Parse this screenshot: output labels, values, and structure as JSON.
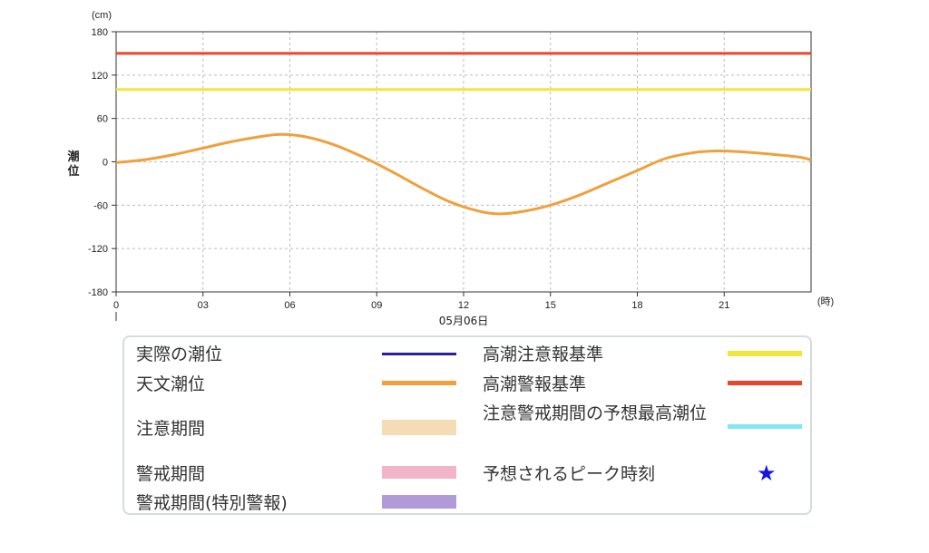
{
  "chart_data": {
    "type": "line",
    "y_unit": "(cm)",
    "x_unit": "(時)",
    "ylabel": "潮\n位",
    "ylim": [
      -180,
      180
    ],
    "yticks": [
      180,
      120,
      60,
      0,
      -60,
      -120,
      -180
    ],
    "xlim": [
      0,
      24
    ],
    "xticks": [
      {
        "value": 0,
        "label": "0"
      },
      {
        "value": 3,
        "label": "03"
      },
      {
        "value": 6,
        "label": "06"
      },
      {
        "value": 9,
        "label": "09"
      },
      {
        "value": 12,
        "label": "12"
      },
      {
        "value": 15,
        "label": "15"
      },
      {
        "value": 18,
        "label": "18"
      },
      {
        "value": 21,
        "label": "21"
      }
    ],
    "date_label": "05月06日",
    "grid": true,
    "reference_lines": [
      {
        "name": "高潮警報基準",
        "value": 150,
        "color": "#e8472c"
      },
      {
        "name": "高潮注意報基準",
        "value": 100,
        "color": "#f0e63c"
      }
    ],
    "series": [
      {
        "name": "天文潮位",
        "color": "#f0a03c",
        "x": [
          0,
          1,
          2,
          3,
          4,
          5,
          5.7,
          6.5,
          7.5,
          8.5,
          9.5,
          10.5,
          11.5,
          12.5,
          13.2,
          14,
          15,
          16,
          17,
          18,
          19,
          20,
          20.8,
          21.5,
          22.5,
          23.5,
          24
        ],
        "y": [
          -1,
          3,
          10,
          19,
          28,
          35,
          38,
          35,
          24,
          7,
          -13,
          -35,
          -55,
          -68,
          -72,
          -69,
          -60,
          -46,
          -29,
          -12,
          5,
          13,
          15,
          14,
          11,
          7,
          3
        ]
      }
    ]
  },
  "legend": {
    "items": [
      {
        "label": "実際の潮位",
        "color": "#2a1f9a",
        "kind": "line"
      },
      {
        "label": "天文潮位",
        "color": "#f0a03c",
        "kind": "line"
      },
      {
        "label": "注意期間",
        "color": "#f5dcb4",
        "kind": "block"
      },
      {
        "label": "警戒期間",
        "color": "#f2b4c8",
        "kind": "block"
      },
      {
        "label": "警戒期間(特別警報)",
        "color": "#b09ad8",
        "kind": "block"
      },
      {
        "label": "高潮注意報基準",
        "color": "#f0e63c",
        "kind": "line"
      },
      {
        "label": "高潮警報基準",
        "color": "#e8472c",
        "kind": "line"
      },
      {
        "label": "注意警戒期間の予想最高潮位",
        "color": "#7fe8f0",
        "kind": "line"
      },
      {
        "label": "予想されるピーク時刻",
        "color": "#1414e6",
        "kind": "star"
      }
    ]
  }
}
